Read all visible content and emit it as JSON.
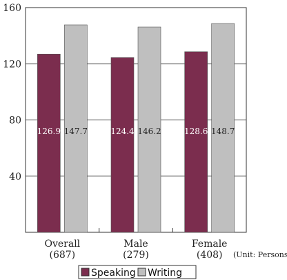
{
  "chart_data": {
    "type": "bar",
    "categories": [
      "Overall",
      "Male",
      "Female"
    ],
    "category_counts": [
      "(687)",
      "(279)",
      "(408)"
    ],
    "series": [
      {
        "name": "Speaking",
        "values": [
          126.9,
          124.4,
          128.6
        ],
        "color": "#7b2d4e"
      },
      {
        "name": "Writing",
        "values": [
          147.7,
          146.2,
          148.7
        ],
        "color": "#bfbfbf"
      }
    ],
    "value_labels": [
      [
        "126.9",
        "124.4",
        "128.6"
      ],
      [
        "147.7",
        "146.2",
        "148.7"
      ]
    ],
    "ylim": [
      0,
      160
    ],
    "yticks": [
      40,
      80,
      120,
      160
    ],
    "ytick_labels": [
      "40",
      "80",
      "120",
      "160"
    ],
    "grid": true,
    "legend_position": "bottom-center",
    "unit_note": "(Unit: Persons)",
    "title": "",
    "xlabel": "",
    "ylabel": ""
  }
}
